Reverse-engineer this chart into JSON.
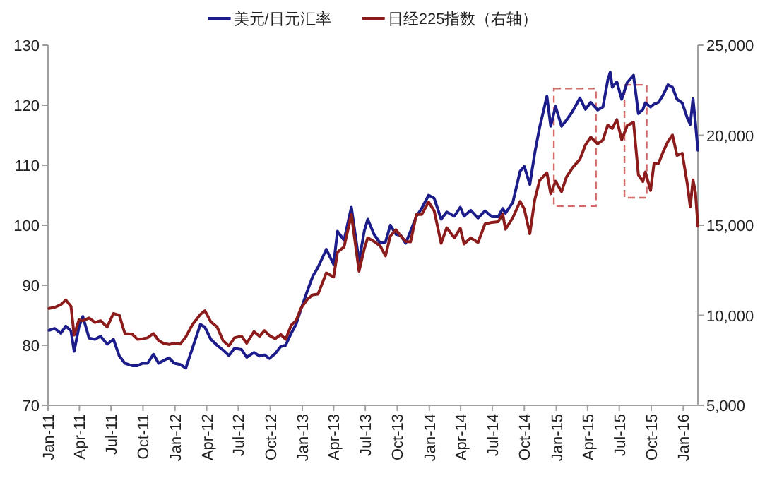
{
  "chart_data": {
    "type": "line",
    "legend": "top",
    "grid": false,
    "marker": "none",
    "line_style": "solid",
    "x": [
      "2011-01-04",
      "2011-01-20",
      "2011-02-07",
      "2011-02-21",
      "2011-03-08",
      "2011-03-17",
      "2011-03-31",
      "2011-04-11",
      "2011-04-29",
      "2011-05-16",
      "2011-06-01",
      "2011-06-20",
      "2011-07-08",
      "2011-07-25",
      "2011-08-10",
      "2011-08-31",
      "2011-09-15",
      "2011-09-30",
      "2011-10-14",
      "2011-10-31",
      "2011-11-15",
      "2011-11-30",
      "2011-12-15",
      "2011-12-30",
      "2012-01-16",
      "2012-02-01",
      "2012-02-20",
      "2012-03-14",
      "2012-03-27",
      "2012-04-13",
      "2012-05-01",
      "2012-05-18",
      "2012-06-04",
      "2012-06-20",
      "2012-07-10",
      "2012-07-25",
      "2012-08-15",
      "2012-08-31",
      "2012-09-14",
      "2012-09-28",
      "2012-10-15",
      "2012-10-31",
      "2012-11-14",
      "2012-11-30",
      "2012-12-14",
      "2012-12-28",
      "2013-01-15",
      "2013-01-31",
      "2013-02-15",
      "2013-03-11",
      "2013-04-01",
      "2013-04-12",
      "2013-05-01",
      "2013-05-22",
      "2013-06-13",
      "2013-06-28",
      "2013-07-08",
      "2013-07-26",
      "2013-08-13",
      "2013-08-28",
      "2013-09-11",
      "2013-09-27",
      "2013-10-11",
      "2013-10-25",
      "2013-11-08",
      "2013-11-25",
      "2013-12-10",
      "2013-12-30",
      "2014-01-15",
      "2014-02-04",
      "2014-02-20",
      "2014-03-14",
      "2014-03-31",
      "2014-04-11",
      "2014-04-30",
      "2014-05-21",
      "2014-06-10",
      "2014-06-30",
      "2014-07-18",
      "2014-07-31",
      "2014-08-08",
      "2014-08-29",
      "2014-09-19",
      "2014-10-01",
      "2014-10-17",
      "2014-10-31",
      "2014-11-14",
      "2014-12-05",
      "2014-12-16",
      "2014-12-30",
      "2015-01-16",
      "2015-01-30",
      "2015-02-17",
      "2015-03-10",
      "2015-03-26",
      "2015-04-10",
      "2015-04-30",
      "2015-05-15",
      "2015-05-29",
      "2015-06-05",
      "2015-06-11",
      "2015-06-24",
      "2015-07-08",
      "2015-07-24",
      "2015-08-11",
      "2015-08-25",
      "2015-09-07",
      "2015-09-14",
      "2015-09-29",
      "2015-10-09",
      "2015-10-22",
      "2015-11-05",
      "2015-11-18",
      "2015-12-01",
      "2015-12-14",
      "2015-12-29",
      "2016-01-13",
      "2016-01-21",
      "2016-01-29",
      "2016-02-05",
      "2016-02-12"
    ],
    "series": [
      {
        "name": "美元/日元汇率",
        "color": "#1c1c8a",
        "values": [
          82.5,
          82.8,
          82.0,
          83.2,
          82.4,
          79.0,
          83.1,
          84.8,
          81.2,
          81.0,
          81.5,
          80.2,
          81.0,
          78.2,
          77.0,
          76.6,
          76.6,
          77.0,
          77.0,
          78.5,
          77.0,
          77.5,
          77.9,
          77.0,
          76.8,
          76.2,
          79.5,
          83.5,
          83.0,
          81.0,
          80.0,
          79.2,
          78.3,
          79.5,
          79.3,
          78.0,
          78.8,
          78.2,
          78.4,
          77.8,
          78.6,
          79.8,
          80.0,
          82.0,
          83.5,
          86.0,
          89.0,
          91.5,
          93.0,
          96.0,
          93.5,
          99.0,
          97.5,
          103.0,
          94.0,
          99.0,
          101.0,
          98.5,
          97.0,
          97.2,
          100.0,
          98.5,
          98.3,
          97.0,
          99.0,
          101.5,
          102.8,
          105.0,
          104.5,
          101.0,
          102.2,
          101.5,
          103.0,
          101.5,
          102.5,
          101.2,
          102.4,
          101.4,
          101.4,
          102.8,
          102.0,
          103.8,
          109.0,
          109.8,
          106.8,
          112.0,
          116.3,
          121.5,
          116.5,
          119.8,
          116.5,
          117.5,
          119.0,
          121.2,
          119.3,
          120.5,
          119.2,
          119.7,
          124.2,
          125.5,
          123.0,
          123.9,
          121.0,
          123.8,
          125.0,
          118.6,
          119.3,
          120.4,
          119.7,
          120.2,
          120.5,
          121.8,
          123.4,
          123.0,
          121.0,
          120.4,
          117.8,
          116.8,
          121.1,
          117.0,
          112.5
        ]
      },
      {
        "name": "日经225指数（右轴）",
        "color": "#8c1c1c",
        "axis": "y2",
        "values": [
          10380,
          10440,
          10590,
          10850,
          10500,
          8900,
          9750,
          9700,
          9850,
          9600,
          9700,
          9350,
          10100,
          10000,
          8980,
          8950,
          8670,
          8700,
          8750,
          8990,
          8600,
          8430,
          8380,
          8450,
          8400,
          8800,
          9480,
          10050,
          10250,
          9640,
          9350,
          8600,
          8300,
          8750,
          8850,
          8450,
          9100,
          8830,
          9150,
          8880,
          8700,
          8930,
          8660,
          9450,
          9700,
          10390,
          10880,
          11140,
          11180,
          12350,
          12130,
          13500,
          13800,
          15600,
          12450,
          13680,
          14300,
          14100,
          13850,
          13300,
          14400,
          14750,
          14400,
          14100,
          14080,
          15600,
          15600,
          16290,
          15800,
          14000,
          14860,
          14300,
          14830,
          13960,
          14300,
          14040,
          15070,
          15160,
          15200,
          15620,
          14780,
          15420,
          16320,
          15900,
          14530,
          16410,
          17490,
          17920,
          16750,
          17450,
          16860,
          17670,
          18200,
          18670,
          19470,
          19900,
          19520,
          19730,
          20560,
          20460,
          20380,
          20870,
          19740,
          20540,
          20720,
          17800,
          17430,
          17960,
          16930,
          18440,
          18440,
          19120,
          19650,
          20010,
          18880,
          19000,
          17240,
          16020,
          17520,
          16820,
          14950
        ]
      }
    ],
    "xlim": [
      "2011-01-01",
      "2016-02-12"
    ],
    "xticks": [
      {
        "value": "2011-01-01",
        "label": "Jan-11"
      },
      {
        "value": "2011-04-01",
        "label": "Apr-11"
      },
      {
        "value": "2011-07-01",
        "label": "Jul-11"
      },
      {
        "value": "2011-10-01",
        "label": "Oct-11"
      },
      {
        "value": "2012-01-01",
        "label": "Jan-12"
      },
      {
        "value": "2012-04-01",
        "label": "Apr-12"
      },
      {
        "value": "2012-07-01",
        "label": "Jul-12"
      },
      {
        "value": "2012-10-01",
        "label": "Oct-12"
      },
      {
        "value": "2013-01-01",
        "label": "Jan-13"
      },
      {
        "value": "2013-04-01",
        "label": "Apr-13"
      },
      {
        "value": "2013-07-01",
        "label": "Jul-13"
      },
      {
        "value": "2013-10-01",
        "label": "Oct-13"
      },
      {
        "value": "2014-01-01",
        "label": "Jan-14"
      },
      {
        "value": "2014-04-01",
        "label": "Apr-14"
      },
      {
        "value": "2014-07-01",
        "label": "Jul-14"
      },
      {
        "value": "2014-10-01",
        "label": "Oct-14"
      },
      {
        "value": "2015-01-01",
        "label": "Jan-15"
      },
      {
        "value": "2015-04-01",
        "label": "Apr-15"
      },
      {
        "value": "2015-07-01",
        "label": "Jul-15"
      },
      {
        "value": "2015-10-01",
        "label": "Oct-15"
      },
      {
        "value": "2016-01-01",
        "label": "Jan-16"
      }
    ],
    "ylim": [
      70,
      130
    ],
    "yticks": [
      70,
      80,
      90,
      100,
      110,
      120,
      130
    ],
    "y2lim": [
      5000,
      25000
    ],
    "y2ticks": [
      {
        "value": 5000,
        "label": "5,000"
      },
      {
        "value": 10000,
        "label": "10,000"
      },
      {
        "value": 15000,
        "label": "15,000"
      },
      {
        "value": 20000,
        "label": "20,000"
      },
      {
        "value": 25000,
        "label": "25,000"
      }
    ]
  }
}
